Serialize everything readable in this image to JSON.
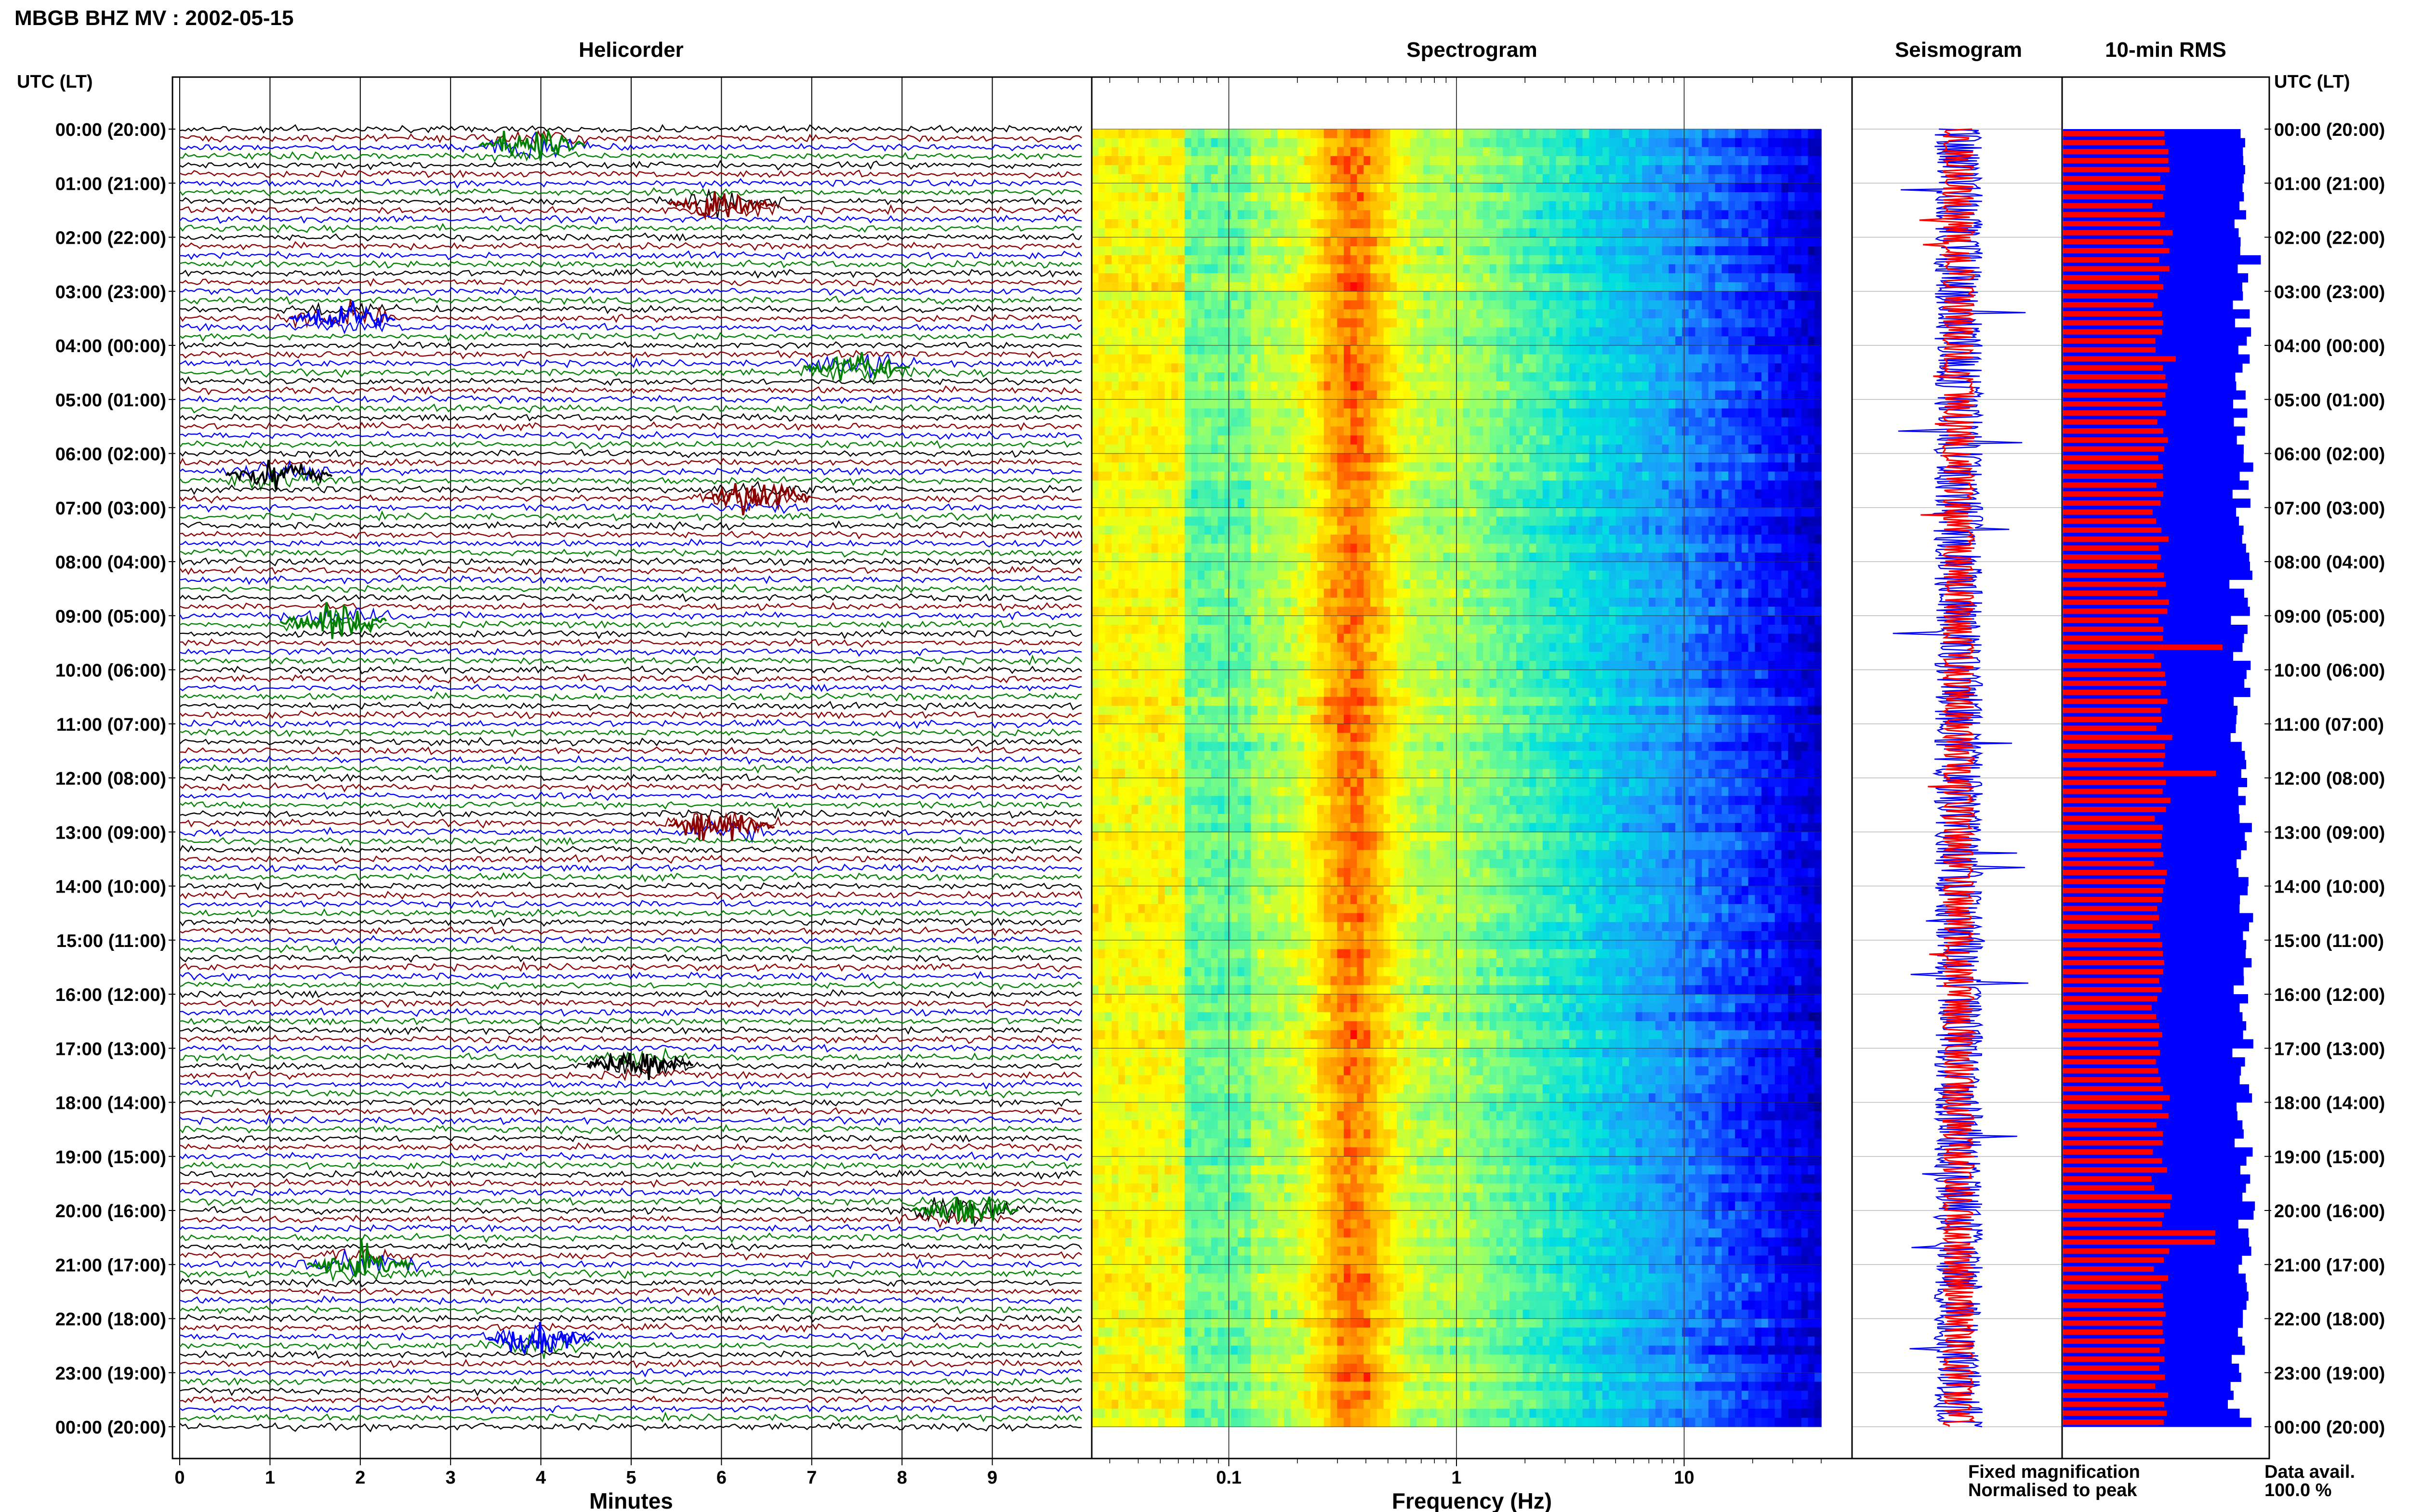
{
  "figure": {
    "title": "MBGB BHZ MV : 2002-05-15",
    "time_axis_label": "UTC (LT)",
    "legend": {
      "fixed": "Fixed magnification",
      "normalised": "Normalised to peak",
      "fixed_color": "#0000ff",
      "normalised_color": "#ff0000"
    },
    "data_avail": {
      "label": "Data avail.",
      "value": "100.0 %"
    }
  },
  "chart_data": [
    {
      "type": "line",
      "panel": "helicorder",
      "title": "Helicorder",
      "xlabel": "Minutes",
      "xlim": [
        0,
        10
      ],
      "x_ticks": [
        "0",
        "1",
        "2",
        "3",
        "4",
        "5",
        "6",
        "7",
        "8",
        "9"
      ],
      "y_tick_labels": [
        "00:00 (20:00)",
        "01:00 (21:00)",
        "02:00 (22:00)",
        "03:00 (23:00)",
        "04:00 (00:00)",
        "05:00 (01:00)",
        "06:00 (02:00)",
        "07:00 (03:00)",
        "08:00 (04:00)",
        "09:00 (05:00)",
        "10:00 (06:00)",
        "11:00 (07:00)",
        "12:00 (08:00)",
        "13:00 (09:00)",
        "14:00 (10:00)",
        "15:00 (11:00)",
        "16:00 (12:00)",
        "17:00 (13:00)",
        "18:00 (14:00)",
        "19:00 (15:00)",
        "20:00 (16:00)",
        "21:00 (17:00)",
        "22:00 (18:00)",
        "23:00 (19:00)",
        "00:00 (20:00)"
      ],
      "line_minutes": 10,
      "line_count": 144,
      "trace_colors": [
        "#000000",
        "#8b0000",
        "#0000ff",
        "#008000"
      ],
      "events": [
        {
          "hour": 0.3,
          "minute": 3.9,
          "color": "#008000"
        },
        {
          "hour": 1.4,
          "minute": 6.0,
          "color": "#8b0000"
        },
        {
          "hour": 3.5,
          "minute": 1.8,
          "color": "#0000ff"
        },
        {
          "hour": 4.4,
          "minute": 7.5,
          "color": "#008000"
        },
        {
          "hour": 6.4,
          "minute": 1.1,
          "color": "#000000"
        },
        {
          "hour": 6.8,
          "minute": 6.4,
          "color": "#8b0000"
        },
        {
          "hour": 9.1,
          "minute": 1.7,
          "color": "#008000"
        },
        {
          "hour": 12.9,
          "minute": 6.0,
          "color": "#8b0000"
        },
        {
          "hour": 17.3,
          "minute": 5.1,
          "color": "#000000"
        },
        {
          "hour": 20.0,
          "minute": 8.7,
          "color": "#008000"
        },
        {
          "hour": 21.0,
          "minute": 2.0,
          "color": "#008000"
        },
        {
          "hour": 22.4,
          "minute": 4.0,
          "color": "#0000ff"
        }
      ]
    },
    {
      "type": "heatmap",
      "panel": "spectrogram",
      "title": "Spectrogram",
      "xlabel": "Frequency (Hz)",
      "x_scale": "log",
      "xlim": [
        0.025,
        40
      ],
      "x_ticks": [
        "0.1",
        "1",
        "10"
      ],
      "energy_peak_hz": 0.35,
      "colormap": [
        "#00008b",
        "#0000ff",
        "#1e90ff",
        "#00e0e0",
        "#80ff80",
        "#ffff00",
        "#ffa500",
        "#ff0000"
      ]
    },
    {
      "type": "line",
      "panel": "seismogram",
      "title": "Seismogram",
      "series": [
        {
          "name": "Fixed magnification",
          "color": "#0000ff"
        },
        {
          "name": "Normalised to peak",
          "color": "#ff0000"
        }
      ]
    },
    {
      "type": "bar",
      "panel": "rms",
      "title": "10-min RMS",
      "orientation": "horizontal",
      "intervals": 144,
      "series": [
        {
          "name": "Fixed magnification",
          "color": "#0000ff",
          "typical_level": 0.88
        },
        {
          "name": "Normalised to peak",
          "color": "#ff0000",
          "typical_level": 0.48
        }
      ]
    }
  ]
}
